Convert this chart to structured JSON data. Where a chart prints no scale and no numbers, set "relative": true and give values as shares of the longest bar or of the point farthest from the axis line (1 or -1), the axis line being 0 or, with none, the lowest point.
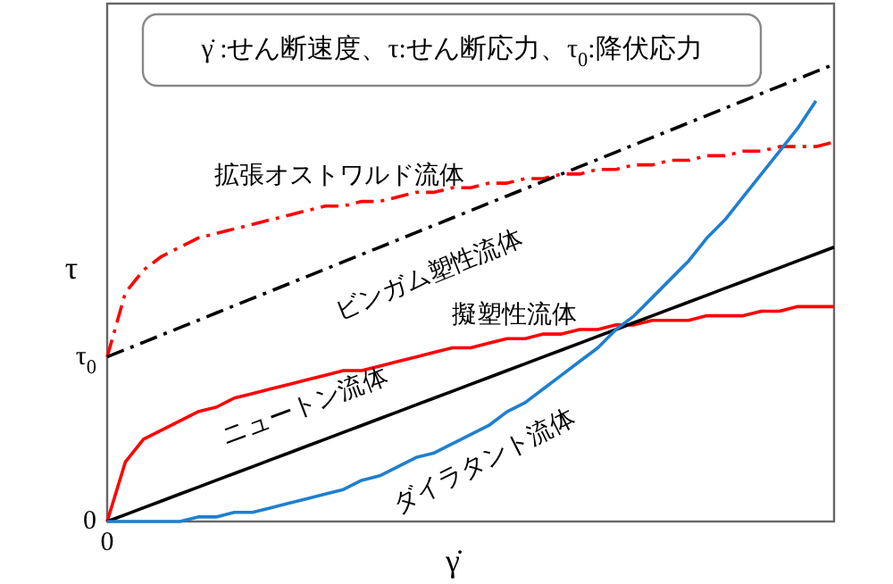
{
  "chart_data": {
    "type": "line",
    "relative": true,
    "xlabel": "γ̇",
    "ylabel": "τ",
    "legend": false,
    "annotations": [
      "γ̇ :せん断速度、τ:せん断応力、τ$_{0}$:降伏応力",
      "0",
      "0",
      "τ$_{0}$"
    ],
    "categories": [
      null,
      null,
      null,
      null,
      null,
      null,
      null,
      null,
      null,
      null,
      null,
      null,
      null,
      null,
      null,
      null,
      null,
      null,
      null,
      null,
      null,
      null,
      null,
      null,
      null,
      null,
      null,
      null,
      null,
      null,
      null,
      null,
      null,
      null,
      null,
      null,
      null,
      null,
      null,
      null,
      null
    ],
    "series": [
      {
        "name": "拡張オストワルド流体",
        "color": "#ff0000",
        "line_style": "dashdot",
        "values": [
          0.36,
          0.5,
          0.55,
          0.58,
          0.6,
          0.62,
          0.63,
          0.64,
          0.65,
          0.66,
          0.67,
          0.68,
          0.69,
          0.69,
          0.7,
          0.7,
          0.71,
          0.72,
          0.72,
          0.73,
          0.73,
          0.74,
          0.74,
          0.75,
          0.75,
          0.76,
          0.76,
          0.77,
          0.77,
          0.78,
          0.78,
          0.79,
          0.79,
          0.8,
          0.8,
          0.81,
          0.81,
          0.82,
          0.82,
          0.82,
          0.83
        ]
      },
      {
        "name": "ビンガム塑性流体",
        "color": "#000000",
        "line_style": "dashdot",
        "values": [
          0.36,
          0.376,
          0.392,
          0.408,
          0.424,
          0.44,
          0.456,
          0.472,
          0.488,
          0.504,
          0.52,
          0.536,
          0.552,
          0.568,
          0.584,
          0.6,
          0.616,
          0.632,
          0.648,
          0.664,
          0.68,
          0.696,
          0.712,
          0.728,
          0.744,
          0.76,
          0.776,
          0.792,
          0.808,
          0.824,
          0.84,
          0.856,
          0.872,
          0.888,
          0.904,
          0.92,
          0.936,
          0.952,
          0.968,
          0.984,
          1.0
        ]
      },
      {
        "name": "擬塑性流体",
        "color": "#ff0000",
        "line_style": "solid",
        "values": [
          0,
          0.13,
          0.18,
          0.2,
          0.22,
          0.24,
          0.25,
          0.27,
          0.28,
          0.29,
          0.3,
          0.31,
          0.32,
          0.33,
          0.33,
          0.34,
          0.35,
          0.36,
          0.37,
          0.38,
          0.38,
          0.39,
          0.4,
          0.4,
          0.41,
          0.41,
          0.42,
          0.42,
          0.43,
          0.43,
          0.44,
          0.44,
          0.44,
          0.45,
          0.45,
          0.45,
          0.46,
          0.46,
          0.47,
          0.47,
          0.47
        ]
      },
      {
        "name": "ニュートン流体",
        "color": "#000000",
        "line_style": "solid",
        "values": [
          0,
          0.015,
          0.03,
          0.045,
          0.06,
          0.075,
          0.09,
          0.105,
          0.12,
          0.135,
          0.15,
          0.165,
          0.18,
          0.195,
          0.21,
          0.225,
          0.24,
          0.255,
          0.27,
          0.285,
          0.3,
          0.315,
          0.33,
          0.345,
          0.36,
          0.375,
          0.39,
          0.405,
          0.42,
          0.435,
          0.45,
          0.465,
          0.48,
          0.495,
          0.51,
          0.525,
          0.54,
          0.555,
          0.57,
          0.585,
          0.6
        ]
      },
      {
        "name": "ダイラタント流体",
        "color": "#1f7fcf",
        "line_style": "solid",
        "values": [
          0,
          0,
          0,
          0,
          0,
          0.01,
          0.01,
          0.02,
          0.02,
          0.03,
          0.04,
          0.05,
          0.06,
          0.07,
          0.09,
          0.1,
          0.12,
          0.14,
          0.15,
          0.17,
          0.19,
          0.21,
          0.24,
          0.26,
          0.29,
          0.32,
          0.35,
          0.38,
          0.42,
          0.45,
          0.49,
          0.53,
          0.57,
          0.62,
          0.66,
          0.71,
          0.76,
          0.81,
          0.86,
          0.92,
          null
        ]
      }
    ]
  }
}
